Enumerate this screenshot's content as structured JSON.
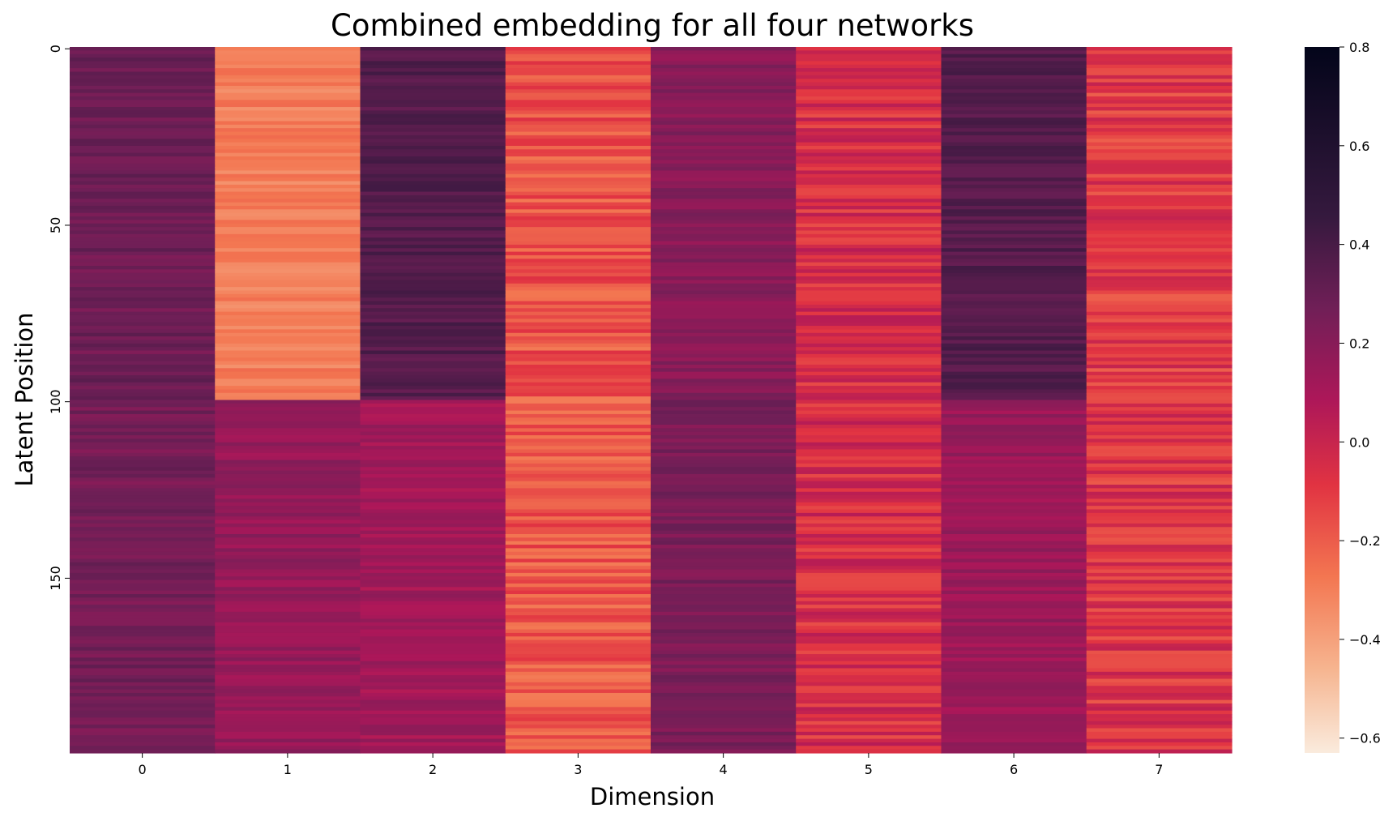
{
  "chart_data": {
    "type": "heatmap",
    "title": "Combined embedding for all four networks",
    "xlabel": "Dimension",
    "ylabel": "Latent Position",
    "x_categories": [
      "0",
      "1",
      "2",
      "3",
      "4",
      "5",
      "6",
      "7"
    ],
    "y_range": [
      0,
      200
    ],
    "y_ticks": [
      "0",
      "50",
      "100",
      "150"
    ],
    "row_count": 200,
    "colorbar": {
      "min": -0.63,
      "max": 0.8,
      "ticks": [
        "0.8",
        "0.6",
        "0.4",
        "0.2",
        "0.0",
        "−0.2",
        "−0.4",
        "−0.6"
      ],
      "colormap": "rocket_r"
    },
    "column_profiles": [
      {
        "dimension": "0",
        "mean_rows_0_99": 0.28,
        "mean_rows_100_199": 0.26
      },
      {
        "dimension": "1",
        "mean_rows_0_99": -0.3,
        "mean_rows_100_199": 0.16
      },
      {
        "dimension": "2",
        "mean_rows_0_99": 0.36,
        "mean_rows_100_199": 0.12
      },
      {
        "dimension": "3",
        "mean_rows_0_99": -0.18,
        "mean_rows_100_199": -0.18
      },
      {
        "dimension": "4",
        "mean_rows_0_99": 0.2,
        "mean_rows_100_199": 0.24
      },
      {
        "dimension": "5",
        "mean_rows_0_99": -0.05,
        "mean_rows_100_199": -0.05
      },
      {
        "dimension": "6",
        "mean_rows_0_99": 0.36,
        "mean_rows_100_199": 0.14
      },
      {
        "dimension": "7",
        "mean_rows_0_99": -0.1,
        "mean_rows_100_199": -0.08
      }
    ]
  }
}
